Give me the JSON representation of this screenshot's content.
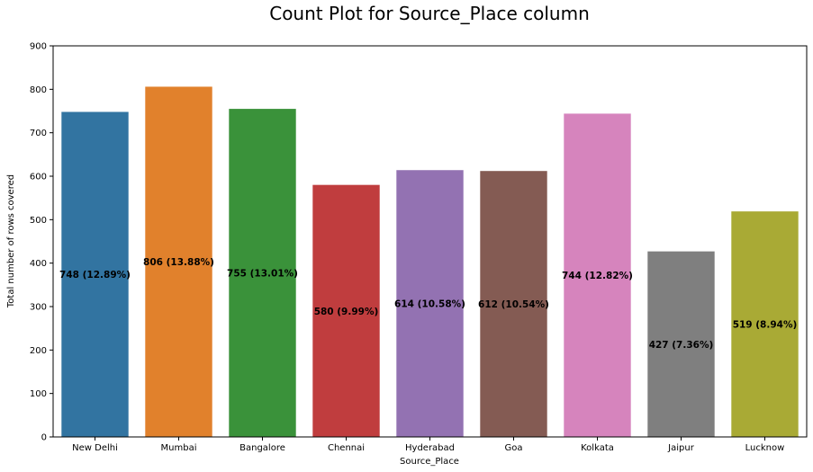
{
  "chart_data": {
    "type": "bar",
    "title": "Count Plot for Source_Place column",
    "xlabel": "Source_Place",
    "ylabel": "Total number of rows covered",
    "ylim": [
      0,
      900
    ],
    "yticks": [
      0,
      100,
      200,
      300,
      400,
      500,
      600,
      700,
      800,
      900
    ],
    "grid": false,
    "categories": [
      "New Delhi",
      "Mumbai",
      "Bangalore",
      "Chennai",
      "Hyderabad",
      "Goa",
      "Kolkata",
      "Jaipur",
      "Lucknow"
    ],
    "values": [
      748,
      806,
      755,
      580,
      614,
      612,
      744,
      427,
      519
    ],
    "data_labels": [
      "748 (12.89%)",
      "806 (13.88%)",
      "755 (13.01%)",
      "580 (9.99%)",
      "614 (10.58%)",
      "612 (10.54%)",
      "744 (12.82%)",
      "427 (7.36%)",
      "519 (8.94%)"
    ],
    "colors": [
      "#3274a1",
      "#e1812c",
      "#3a923a",
      "#c03d3e",
      "#9372b2",
      "#845b53",
      "#d684bd",
      "#7f7f7f",
      "#a9aa35"
    ]
  }
}
